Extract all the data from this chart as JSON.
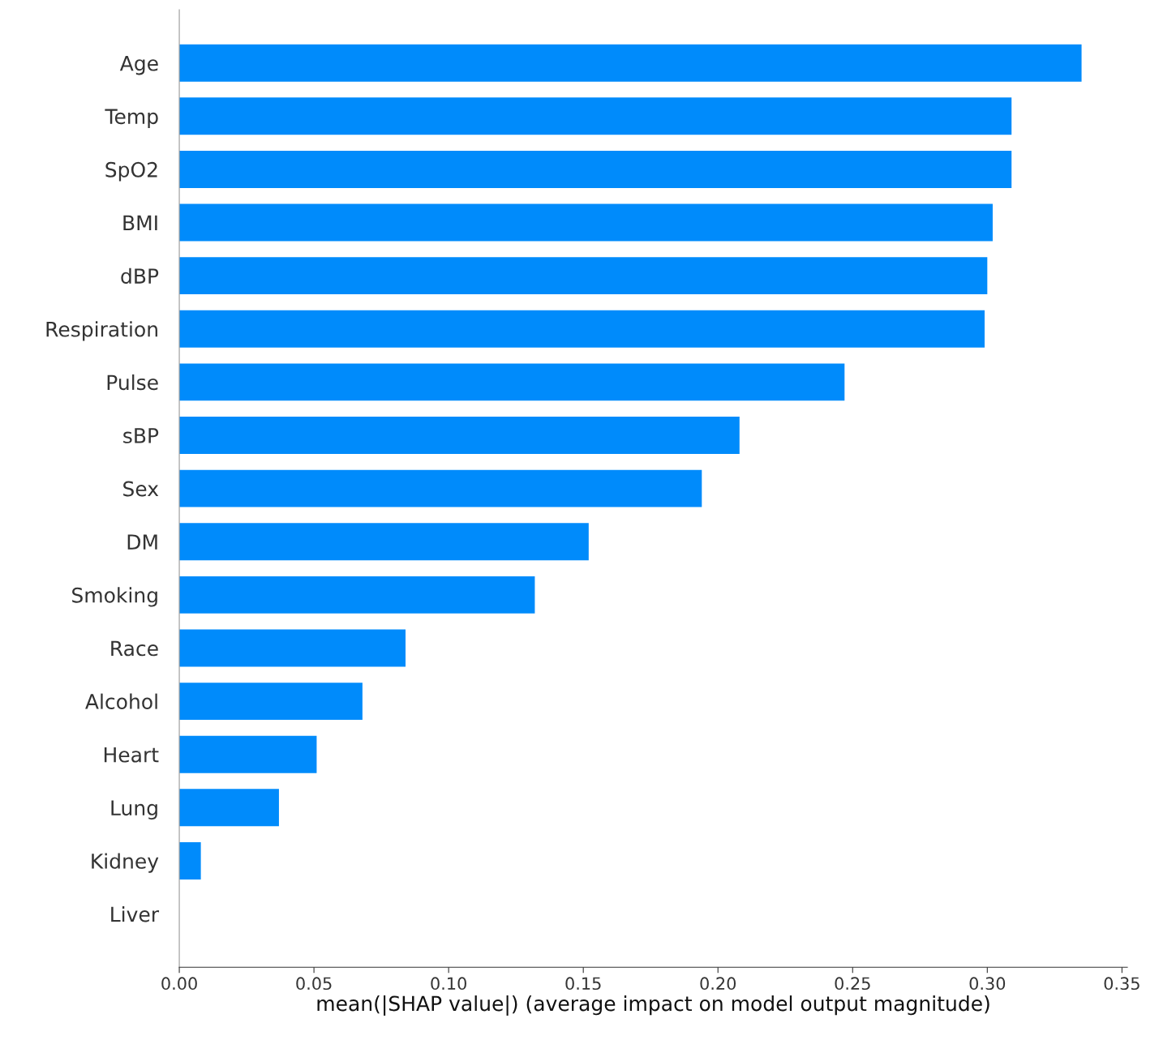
{
  "chart_data": {
    "type": "bar",
    "orientation": "horizontal",
    "xlabel": "mean(|SHAP value|) (average impact on model output magnitude)",
    "categories": [
      "Age",
      "Temp",
      "SpO2",
      "BMI",
      "dBP",
      "Respiration",
      "Pulse",
      "sBP",
      "Sex",
      "DM",
      "Smoking",
      "Race",
      "Alcohol",
      "Heart",
      "Lung",
      "Kidney",
      "Liver"
    ],
    "values": [
      0.335,
      0.309,
      0.309,
      0.302,
      0.3,
      0.299,
      0.247,
      0.208,
      0.194,
      0.152,
      0.132,
      0.084,
      0.068,
      0.051,
      0.037,
      0.008,
      0.0
    ],
    "color": "#008bfb",
    "xlim": [
      0,
      0.352
    ],
    "xticks": [
      {
        "value": 0,
        "label": "0.00"
      },
      {
        "value": 0.05,
        "label": "0.05"
      },
      {
        "value": 0.1,
        "label": "0.10"
      },
      {
        "value": 0.15,
        "label": "0.15"
      },
      {
        "value": 0.2,
        "label": "0.20"
      },
      {
        "value": 0.25,
        "label": "0.25"
      },
      {
        "value": 0.3,
        "label": "0.30"
      },
      {
        "value": 0.35,
        "label": "0.35"
      }
    ],
    "grid": false,
    "legend": false
  }
}
